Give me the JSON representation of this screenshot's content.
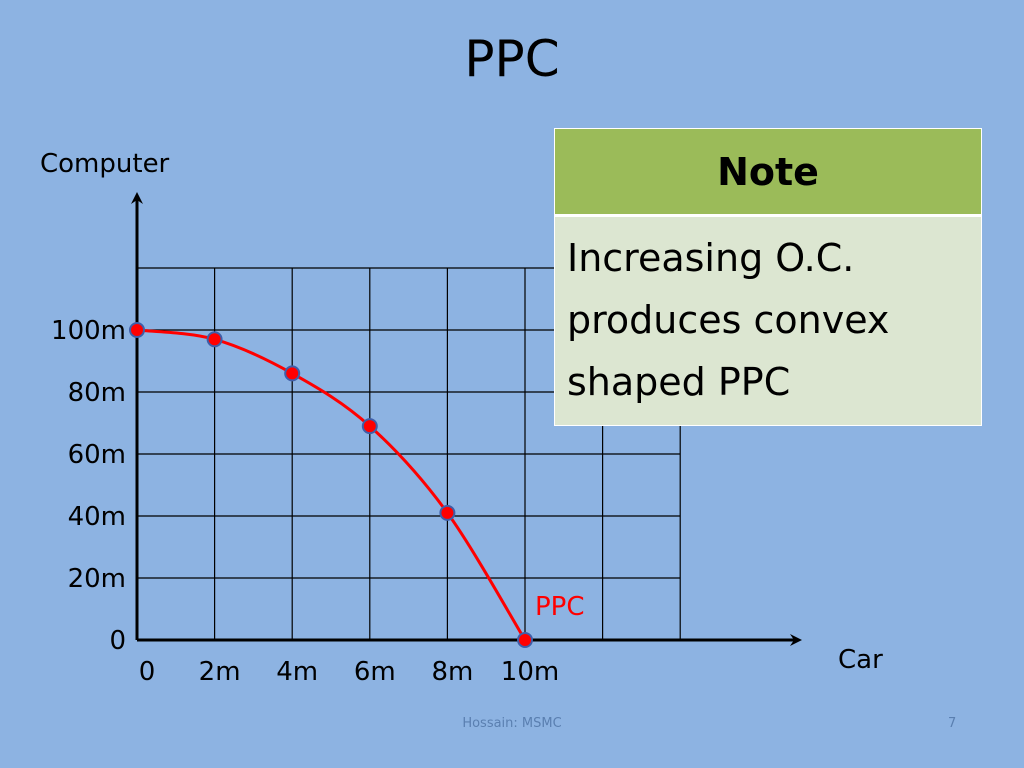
{
  "slide": {
    "title": "PPC",
    "footer": "Hossain: MSMC",
    "page_number": "7"
  },
  "note": {
    "header": "Note",
    "body": "Increasing O.C. produces convex shaped PPC"
  },
  "chart_data": {
    "type": "line",
    "title": "",
    "xlabel": "Car",
    "ylabel": "Computer",
    "x_ticks": [
      "0",
      "2m",
      "4m",
      "6m",
      "8m",
      "10m"
    ],
    "y_ticks": [
      "0",
      "20m",
      "40m",
      "60m",
      "80m",
      "100m"
    ],
    "xlim": [
      0,
      14
    ],
    "ylim": [
      0,
      120
    ],
    "grid": true,
    "series": [
      {
        "name": "PPC",
        "color": "#ff0000",
        "x": [
          0,
          2,
          4,
          6,
          8,
          10
        ],
        "y": [
          100,
          97,
          86,
          69,
          41,
          0
        ]
      }
    ],
    "marker_color": "#ff0000",
    "marker_edge": "#3f5ea8"
  }
}
